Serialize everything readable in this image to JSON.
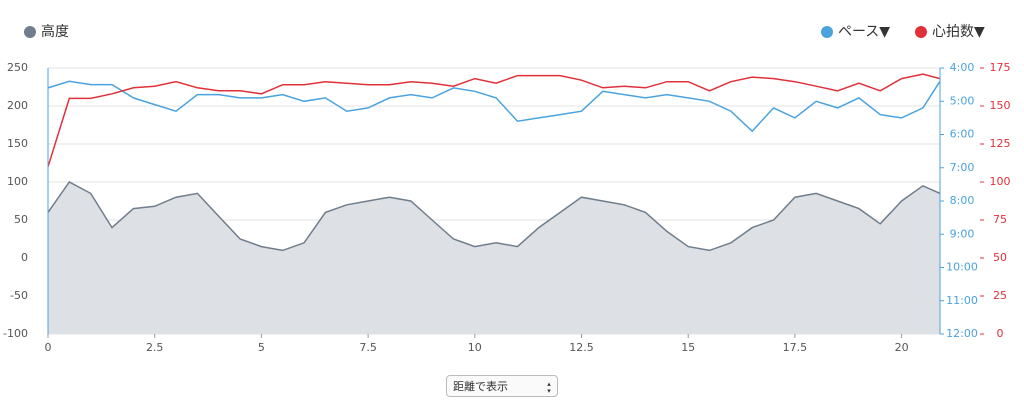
{
  "chart_data": {
    "type": "line",
    "x": [
      0,
      0.5,
      1,
      1.5,
      2,
      2.5,
      3,
      3.5,
      4,
      4.5,
      5,
      5.5,
      6,
      6.5,
      7,
      7.5,
      8,
      8.5,
      9,
      9.5,
      10,
      10.5,
      11,
      11.5,
      12,
      12.5,
      13,
      13.5,
      14,
      14.5,
      15,
      15.5,
      16,
      16.5,
      17,
      17.5,
      18,
      18.5,
      19,
      19.5,
      20,
      20.5,
      20.9
    ],
    "series": [
      {
        "name": "高度",
        "color": "#6f7d8c",
        "fill": "#dde1e5",
        "axis": "y",
        "values": [
          60,
          100,
          85,
          40,
          65,
          68,
          80,
          85,
          55,
          25,
          15,
          10,
          20,
          60,
          70,
          75,
          80,
          75,
          50,
          25,
          15,
          20,
          15,
          40,
          60,
          80,
          75,
          70,
          60,
          35,
          15,
          10,
          20,
          40,
          50,
          80,
          85,
          75,
          65,
          45,
          75,
          95,
          85
        ]
      },
      {
        "name": "ペース▼",
        "color": "#4aa3df",
        "axis": "y2",
        "values": [
          4.6,
          4.4,
          4.5,
          4.5,
          4.9,
          5.1,
          5.3,
          4.8,
          4.8,
          4.9,
          4.9,
          4.8,
          5.0,
          4.9,
          5.3,
          5.2,
          4.9,
          4.8,
          4.9,
          4.6,
          4.7,
          4.9,
          5.6,
          5.5,
          5.4,
          5.3,
          4.7,
          4.8,
          4.9,
          4.8,
          4.9,
          5.0,
          5.3,
          5.9,
          5.2,
          5.5,
          5.0,
          5.2,
          4.9,
          5.4,
          5.5,
          5.2,
          4.4
        ]
      },
      {
        "name": "心拍数▼",
        "color": "#e0303a",
        "axis": "y3",
        "values": [
          110,
          155,
          155,
          158,
          162,
          163,
          166,
          162,
          160,
          160,
          158,
          164,
          164,
          166,
          165,
          164,
          164,
          166,
          165,
          163,
          168,
          165,
          170,
          170,
          170,
          167,
          162,
          163,
          162,
          166,
          166,
          160,
          166,
          169,
          168,
          166,
          163,
          160,
          165,
          160,
          168,
          171,
          168
        ]
      }
    ],
    "xlim": [
      0,
      20.9
    ],
    "xticks": [
      0,
      2.5,
      5,
      7.5,
      10,
      12.5,
      15,
      17.5,
      20
    ],
    "ylim": [
      -100,
      250
    ],
    "yticks": [
      -100,
      -50,
      0,
      50,
      100,
      150,
      200,
      250
    ],
    "y2lim": [
      12,
      4
    ],
    "y2ticks": [
      {
        "value": 4,
        "label": "4:00"
      },
      {
        "value": 5,
        "label": "5:00"
      },
      {
        "value": 6,
        "label": "6:00"
      },
      {
        "value": 7,
        "label": "7:00"
      },
      {
        "value": 8,
        "label": "8:00"
      },
      {
        "value": 9,
        "label": "9:00"
      },
      {
        "value": 10,
        "label": "10:00"
      },
      {
        "value": 11,
        "label": "11:00"
      },
      {
        "value": 12,
        "label": "12:00"
      }
    ],
    "y3lim": [
      0,
      175
    ],
    "y3ticks": [
      0,
      25,
      50,
      75,
      100,
      125,
      150,
      175
    ],
    "grid": true,
    "selector": "距離で表示"
  }
}
